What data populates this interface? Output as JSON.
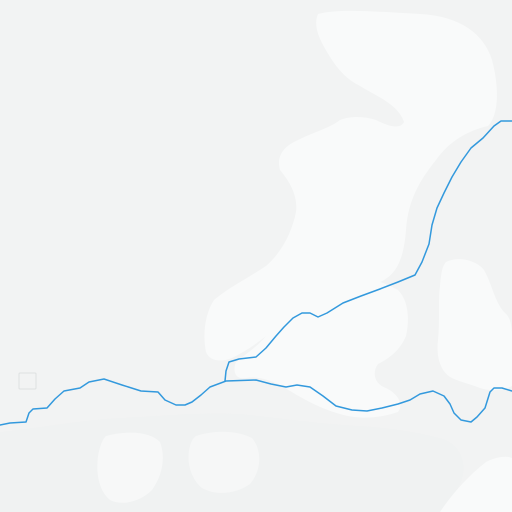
{
  "map": {
    "colors": {
      "land": "#f2f3f3",
      "land_light": "#f9fafa",
      "land_mid": "#eef0f0",
      "water": "#3399dd"
    },
    "features": {
      "rivers": 2,
      "labels_visible": 0
    }
  }
}
